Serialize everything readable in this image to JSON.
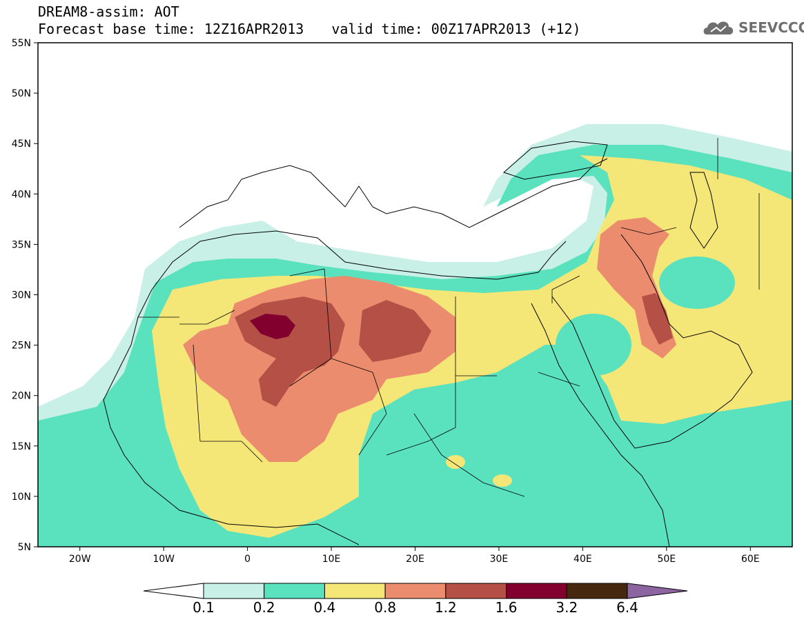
{
  "title": {
    "line1": "DREAM8-assim: AOT",
    "base_time": "Forecast base time: 12Z16APR2013",
    "valid_time": "valid time: 00Z17APR2013 (+12)"
  },
  "logo": {
    "text": "SEEVCCC",
    "icon": "cloud-icon"
  },
  "map": {
    "lon_range": [
      -25,
      65
    ],
    "lat_range": [
      5,
      55
    ],
    "lat_ticks": [
      {
        "value": 55,
        "label": "55N"
      },
      {
        "value": 50,
        "label": "50N"
      },
      {
        "value": 45,
        "label": "45N"
      },
      {
        "value": 40,
        "label": "40N"
      },
      {
        "value": 35,
        "label": "35N"
      },
      {
        "value": 30,
        "label": "30N"
      },
      {
        "value": 25,
        "label": "25N"
      },
      {
        "value": 20,
        "label": "20N"
      },
      {
        "value": 15,
        "label": "15N"
      },
      {
        "value": 10,
        "label": "10N"
      },
      {
        "value": 5,
        "label": "5N"
      }
    ],
    "lon_ticks": [
      {
        "value": -20,
        "label": "20W"
      },
      {
        "value": -10,
        "label": "10W"
      },
      {
        "value": 0,
        "label": "0"
      },
      {
        "value": 10,
        "label": "10E"
      },
      {
        "value": 20,
        "label": "20E"
      },
      {
        "value": 30,
        "label": "30E"
      },
      {
        "value": 40,
        "label": "40E"
      },
      {
        "value": 50,
        "label": "50E"
      },
      {
        "value": 60,
        "label": "60E"
      }
    ]
  },
  "colorbar": {
    "labels": [
      "0.1",
      "0.2",
      "0.4",
      "0.8",
      "1.2",
      "1.6",
      "3.2",
      "6.4"
    ],
    "colors": [
      "#ffffff",
      "#c8f0e6",
      "#5ae1be",
      "#f5e678",
      "#eb8c6e",
      "#b45046",
      "#82002d",
      "#46280f",
      "#8c64a0"
    ]
  }
}
